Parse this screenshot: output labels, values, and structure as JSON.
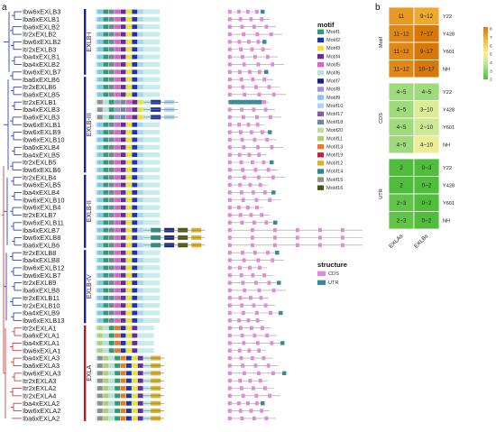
{
  "panel_a_label": "a",
  "panel_b_label": "b",
  "genes": [
    {
      "name": "Ibw6xEXLB3",
      "motifs": [
        "Motif9",
        "Motif1",
        "Motif18",
        "Motif5",
        "Motif4",
        "Motif3",
        "Motif2",
        "Motif10"
      ],
      "clade": 0
    },
    {
      "name": "Iba6xEXLB1",
      "motifs": [
        "Motif9",
        "Motif1",
        "Motif18",
        "Motif5",
        "Motif4",
        "Motif3",
        "Motif2",
        "Motif10"
      ],
      "clade": 0
    },
    {
      "name": "Iba6xEXLB2",
      "motifs": [
        "Motif9",
        "Motif1",
        "Motif18",
        "Motif5",
        "Motif4",
        "Motif3",
        "Motif2",
        "Motif10"
      ],
      "clade": 0
    },
    {
      "name": "Itr2xEXLB2",
      "motifs": [
        "Motif9",
        "Motif1",
        "Motif18",
        "Motif5",
        "Motif4",
        "Motif3",
        "Motif2",
        "Motif10"
      ],
      "clade": 0
    },
    {
      "name": "Ibw6xEXLB2",
      "motifs": [
        "Motif9",
        "Motif1",
        "Motif18",
        "Motif5",
        "Motif4",
        "Motif3",
        "Motif2",
        "Motif10"
      ],
      "clade": 0
    },
    {
      "name": "Itr2xEXLB3",
      "motifs": [
        "Motif9",
        "Motif1",
        "Motif18",
        "Motif5",
        "Motif4",
        "Motif3",
        "Motif2",
        "Motif10"
      ],
      "clade": 0
    },
    {
      "name": "Iba4xEXLB1",
      "motifs": [
        "Motif9",
        "Motif1",
        "Motif18",
        "Motif5",
        "Motif4",
        "Motif3",
        "Motif2",
        "Motif10"
      ],
      "clade": 0
    },
    {
      "name": "Iba4xEXLB2",
      "motifs": [
        "Motif9",
        "Motif1",
        "Motif18",
        "Motif5",
        "Motif4",
        "Motif3",
        "Motif2",
        "Motif10"
      ],
      "clade": 0
    },
    {
      "name": "Ibw6xEXLB7",
      "motifs": [
        "Motif9",
        "Motif1",
        "Motif18",
        "Motif5",
        "Motif4",
        "Motif3",
        "Motif2",
        "Motif10"
      ],
      "clade": 0
    },
    {
      "name": "Iba6xEXLB6",
      "motifs": [
        "Motif9",
        "Motif1",
        "Motif18",
        "Motif5",
        "Motif4",
        "Motif3",
        "Motif2",
        "Motif10"
      ],
      "clade": 1
    },
    {
      "name": "Itr2xEXLB6",
      "motifs": [
        "Motif9",
        "Motif1",
        "Motif18",
        "Motif5",
        "Motif4",
        "Motif3",
        "Motif2",
        "Motif10"
      ],
      "clade": 1
    },
    {
      "name": "Iba6xEXLB5",
      "motifs": [
        "Motif9",
        "Motif1",
        "Motif18",
        "Motif5",
        "Motif4",
        "Motif3",
        "Motif2",
        "Motif10"
      ],
      "clade": 1
    },
    {
      "name": "Itr2xEXLB1",
      "motifs": [
        "Motif15",
        "Motif6",
        "Motif1",
        "Motif8",
        "Motif18",
        "Motif5",
        "Motif4",
        "Motif3",
        "Motif2",
        "Motif10"
      ],
      "clade": 1
    },
    {
      "name": "Iba4xEXLB3",
      "motifs": [
        "Motif15",
        "Motif6",
        "Motif1",
        "Motif8",
        "Motif18",
        "Motif5",
        "Motif4",
        "Motif3",
        "Motif2",
        "Motif10"
      ],
      "clade": 1
    },
    {
      "name": "Iba6xEXLB3",
      "motifs": [
        "Motif15",
        "Motif6",
        "Motif1",
        "Motif8",
        "Motif18",
        "Motif5",
        "Motif4",
        "Motif3",
        "Motif2",
        "Motif10"
      ],
      "clade": 1
    },
    {
      "name": "Ibw6xEXLB1",
      "motifs": [
        "Motif9",
        "Motif1",
        "Motif18",
        "Motif5",
        "Motif4",
        "Motif3",
        "Motif2",
        "Motif10"
      ],
      "clade": 1
    },
    {
      "name": "Ibw6xEXLB9",
      "motifs": [
        "Motif9",
        "Motif1",
        "Motif18",
        "Motif5",
        "Motif4",
        "Motif3",
        "Motif2",
        "Motif10"
      ],
      "clade": 1
    },
    {
      "name": "Ibw6xEXLB10",
      "motifs": [
        "Motif9",
        "Motif1",
        "Motif18",
        "Motif5",
        "Motif4",
        "Motif3",
        "Motif2",
        "Motif10"
      ],
      "clade": 1
    },
    {
      "name": "Iba6xEXLB4",
      "motifs": [
        "Motif9",
        "Motif1",
        "Motif18",
        "Motif5",
        "Motif4",
        "Motif3",
        "Motif2",
        "Motif10"
      ],
      "clade": 1
    },
    {
      "name": "Iba4xEXLB5",
      "motifs": [
        "Motif9",
        "Motif1",
        "Motif18",
        "Motif5",
        "Motif4",
        "Motif3",
        "Motif2",
        "Motif10"
      ],
      "clade": 1
    },
    {
      "name": "Itr2xEXLB5",
      "motifs": [
        "Motif9",
        "Motif1",
        "Motif18",
        "Motif5",
        "Motif4",
        "Motif3",
        "Motif2",
        "Motif10"
      ],
      "clade": 1
    },
    {
      "name": "Ibw6xEXLB6",
      "motifs": [
        "Motif9",
        "Motif1",
        "Motif18",
        "Motif5",
        "Motif4",
        "Motif3",
        "Motif2",
        "Motif10"
      ],
      "clade": 1
    },
    {
      "name": "Itr2xEXLB4",
      "motifs": [
        "Motif9",
        "Motif1",
        "Motif18",
        "Motif5",
        "Motif4",
        "Motif3",
        "Motif2",
        "Motif10"
      ],
      "clade": 2
    },
    {
      "name": "Ibw6xEXLB5",
      "motifs": [
        "Motif9",
        "Motif1",
        "Motif18",
        "Motif5",
        "Motif4",
        "Motif3",
        "Motif2",
        "Motif10"
      ],
      "clade": 2
    },
    {
      "name": "Iba4xEXLB4",
      "motifs": [
        "Motif9",
        "Motif1",
        "Motif18",
        "Motif5",
        "Motif4",
        "Motif3",
        "Motif2",
        "Motif10"
      ],
      "clade": 2
    },
    {
      "name": "Ibw6xEXLB10",
      "motifs": [
        "Motif9",
        "Motif1",
        "Motif18",
        "Motif5",
        "Motif4",
        "Motif3",
        "Motif2",
        "Motif10"
      ],
      "clade": 2
    },
    {
      "name": "Ibw6xEXLB4",
      "motifs": [
        "Motif9",
        "Motif1",
        "Motif18",
        "Motif5",
        "Motif4",
        "Motif3",
        "Motif2",
        "Motif10"
      ],
      "clade": 2
    },
    {
      "name": "Itr2xEXLB7",
      "motifs": [
        "Motif9",
        "Motif1",
        "Motif18",
        "Motif5",
        "Motif4",
        "Motif3",
        "Motif2",
        "Motif10"
      ],
      "clade": 2
    },
    {
      "name": "Ibw6xEXLB11",
      "motifs": [
        "Motif9",
        "Motif1",
        "Motif18",
        "Motif5",
        "Motif4",
        "Motif3",
        "Motif2",
        "Motif10"
      ],
      "clade": 2
    },
    {
      "name": "Iba4xEXLB7",
      "motifs": [
        "Motif9",
        "Motif1",
        "Motif18",
        "Motif5",
        "Motif4",
        "Motif3",
        "Motif2",
        "Motif10",
        "Motif14",
        "Motif7",
        "Motif16",
        "Motif12"
      ],
      "clade": 2
    },
    {
      "name": "Ibw6xEXLB8",
      "motifs": [
        "Motif9",
        "Motif1",
        "Motif18",
        "Motif5",
        "Motif4",
        "Motif3",
        "Motif2",
        "Motif10",
        "Motif14",
        "Motif7",
        "Motif16",
        "Motif12"
      ],
      "clade": 2
    },
    {
      "name": "Iba6xEXLB6",
      "motifs": [
        "Motif9",
        "Motif1",
        "Motif18",
        "Motif5",
        "Motif4",
        "Motif3",
        "Motif2",
        "Motif10",
        "Motif14",
        "Motif7",
        "Motif16",
        "Motif12"
      ],
      "clade": 2
    },
    {
      "name": "Itr2xEXLB8",
      "motifs": [
        "Motif9",
        "Motif1",
        "Motif18",
        "Motif5",
        "Motif4",
        "Motif3",
        "Motif2",
        "Motif10"
      ],
      "clade": 3
    },
    {
      "name": "Iba4xEXLB8",
      "motifs": [
        "Motif9",
        "Motif1",
        "Motif18",
        "Motif5",
        "Motif4",
        "Motif3",
        "Motif2",
        "Motif10"
      ],
      "clade": 3
    },
    {
      "name": "Ibw6xEXLB12",
      "motifs": [
        "Motif9",
        "Motif1",
        "Motif18",
        "Motif5",
        "Motif4",
        "Motif3",
        "Motif2",
        "Motif10"
      ],
      "clade": 3
    },
    {
      "name": "Ibw6xEXLB7",
      "motifs": [
        "Motif9",
        "Motif1",
        "Motif18",
        "Motif5",
        "Motif4",
        "Motif3",
        "Motif2",
        "Motif10"
      ],
      "clade": 3
    },
    {
      "name": "Itr2xEXLB9",
      "motifs": [
        "Motif9",
        "Motif1",
        "Motif18",
        "Motif5",
        "Motif4",
        "Motif3",
        "Motif2",
        "Motif10"
      ],
      "clade": 3
    },
    {
      "name": "Iba6xEXLB8",
      "motifs": [
        "Motif9",
        "Motif1",
        "Motif18",
        "Motif5",
        "Motif4",
        "Motif3",
        "Motif2",
        "Motif10"
      ],
      "clade": 3
    },
    {
      "name": "Itr2xEXLB11",
      "motifs": [
        "Motif9",
        "Motif1",
        "Motif18",
        "Motif5",
        "Motif4",
        "Motif3",
        "Motif2",
        "Motif10"
      ],
      "clade": 3
    },
    {
      "name": "Itr2xEXLB10",
      "motifs": [
        "Motif9",
        "Motif1",
        "Motif18",
        "Motif5",
        "Motif4",
        "Motif3",
        "Motif2",
        "Motif10"
      ],
      "clade": 3
    },
    {
      "name": "Iba4xEXLB9",
      "motifs": [
        "Motif9",
        "Motif1",
        "Motif18",
        "Motif5",
        "Motif4",
        "Motif3",
        "Motif2",
        "Motif10"
      ],
      "clade": 3
    },
    {
      "name": "Ibw6xEXLB13",
      "motifs": [
        "Motif9",
        "Motif1",
        "Motif18",
        "Motif5",
        "Motif4",
        "Motif3",
        "Motif2",
        "Motif10"
      ],
      "clade": 3
    },
    {
      "name": "Itr2xEXLA1",
      "motifs": [
        "Motif11",
        "Motif6",
        "Motif1",
        "Motif13",
        "Motif2",
        "Motif3",
        "Motif4"
      ],
      "clade": 4
    },
    {
      "name": "Iba6xEXLA1",
      "motifs": [
        "Motif11",
        "Motif6",
        "Motif1",
        "Motif13",
        "Motif2",
        "Motif3",
        "Motif4"
      ],
      "clade": 4
    },
    {
      "name": "Iba4xEXLA1",
      "motifs": [
        "Motif11",
        "Motif6",
        "Motif1",
        "Motif13",
        "Motif2",
        "Motif3",
        "Motif4"
      ],
      "clade": 4
    },
    {
      "name": "Ibw6xEXLA1",
      "motifs": [
        "Motif11",
        "Motif6",
        "Motif1",
        "Motif13",
        "Motif2",
        "Motif3",
        "Motif4"
      ],
      "clade": 4
    },
    {
      "name": "Iba4xEXLA3",
      "motifs": [
        "Motif15",
        "Motif11",
        "Motif6",
        "Motif1",
        "Motif13",
        "Motif2",
        "Motif3",
        "Motif4",
        "Motif12"
      ],
      "clade": 4
    },
    {
      "name": "Iba6xEXLA3",
      "motifs": [
        "Motif15",
        "Motif11",
        "Motif6",
        "Motif1",
        "Motif13",
        "Motif2",
        "Motif3",
        "Motif4",
        "Motif12"
      ],
      "clade": 4
    },
    {
      "name": "Ibw6xEXLA3",
      "motifs": [
        "Motif15",
        "Motif11",
        "Motif6",
        "Motif1",
        "Motif13",
        "Motif2",
        "Motif3",
        "Motif4",
        "Motif12"
      ],
      "clade": 4
    },
    {
      "name": "Itr2xEXLA3",
      "motifs": [
        "Motif15",
        "Motif11",
        "Motif6",
        "Motif1",
        "Motif13",
        "Motif2",
        "Motif3",
        "Motif4",
        "Motif12"
      ],
      "clade": 4
    },
    {
      "name": "Itr2xEXLA2",
      "motifs": [
        "Motif15",
        "Motif11",
        "Motif6",
        "Motif1",
        "Motif13",
        "Motif2",
        "Motif3",
        "Motif4",
        "Motif12"
      ],
      "clade": 4
    },
    {
      "name": "Itr2xEXLA4",
      "motifs": [
        "Motif15",
        "Motif11",
        "Motif6",
        "Motif1",
        "Motif13",
        "Motif2",
        "Motif3",
        "Motif4",
        "Motif12"
      ],
      "clade": 4
    },
    {
      "name": "Iba4xEXLA2",
      "motifs": [
        "Motif15",
        "Motif11",
        "Motif6",
        "Motif1",
        "Motif13",
        "Motif2",
        "Motif3",
        "Motif4",
        "Motif12"
      ],
      "clade": 4
    },
    {
      "name": "Ibw6xEXLA2",
      "motifs": [
        "Motif15",
        "Motif11",
        "Motif6",
        "Motif1",
        "Motif13",
        "Motif2",
        "Motif3",
        "Motif4",
        "Motif12"
      ],
      "clade": 4
    },
    {
      "name": "Iba6xEXLA2",
      "motifs": [
        "Motif15",
        "Motif11",
        "Motif6",
        "Motif1",
        "Motif13",
        "Motif2",
        "Motif3",
        "Motif4",
        "Motif12"
      ],
      "clade": 4
    }
  ],
  "clades": [
    {
      "label": "EXLB-I",
      "color": "#1c1cb0"
    },
    {
      "label": "EXLB-III",
      "color": "#1c1cb0"
    },
    {
      "label": "EXLB-II",
      "color": "#1c1cb0"
    },
    {
      "label": "EXLB-IV",
      "color": "#1c1cb0"
    },
    {
      "label": "EXLA",
      "color": "#c01818"
    }
  ],
  "motif_legend": {
    "title": "motif",
    "items": [
      {
        "label": "Motif1",
        "color": "#2e9e6e"
      },
      {
        "label": "Motif2",
        "color": "#2233aa"
      },
      {
        "label": "Motif3",
        "color": "#f0e030"
      },
      {
        "label": "Motif4",
        "color": "#6a2a9a"
      },
      {
        "label": "Motif5",
        "color": "#e060c8"
      },
      {
        "label": "Motif6",
        "color": "#b5e3d8"
      },
      {
        "label": "Motif7",
        "color": "#1a237e"
      },
      {
        "label": "Motif8",
        "color": "#a890d0"
      },
      {
        "label": "Motif9",
        "color": "#80c8e8"
      },
      {
        "label": "Motif10",
        "color": "#a8d8f0"
      },
      {
        "label": "Motif17",
        "color": "#8060a0"
      },
      {
        "label": "Motif18",
        "color": "#708898"
      },
      {
        "label": "Motif20",
        "color": "#c0dca0"
      },
      {
        "label": "Motif11",
        "color": "#b0d070"
      },
      {
        "label": "Motif13",
        "color": "#f07820"
      },
      {
        "label": "Motif19",
        "color": "#c02040"
      },
      {
        "label": "Motif12",
        "color": "#e0b020"
      },
      {
        "label": "Motif14",
        "color": "#2a8a88"
      },
      {
        "label": "Motif15",
        "color": "#909090"
      },
      {
        "label": "Motif16",
        "color": "#4a5810"
      }
    ]
  },
  "structure_legend": {
    "title": "structure",
    "items": [
      {
        "label": "CDS",
        "color": "#e08ad8"
      },
      {
        "label": "UTR",
        "color": "#3a8a9a"
      }
    ]
  },
  "chart_data": {
    "type": "heatmap",
    "row_groups": [
      {
        "label": "Motif",
        "rows": [
          {
            "label": "Y22",
            "cells": [
              "11",
              "9~12"
            ],
            "values": [
              11,
              10.5
            ]
          },
          {
            "label": "Y428",
            "cells": [
              "11~12",
              "7~17"
            ],
            "values": [
              11.5,
              12
            ]
          },
          {
            "label": "Y601",
            "cells": [
              "11~12",
              "9~17"
            ],
            "values": [
              11.5,
              13
            ]
          },
          {
            "label": "NH",
            "cells": [
              "11~12",
              "10~17"
            ],
            "values": [
              11.5,
              13.5
            ]
          }
        ]
      },
      {
        "label": "CDS",
        "rows": [
          {
            "label": "Y22",
            "cells": [
              "4~5",
              "4~5"
            ],
            "values": [
              4.5,
              4.5
            ]
          },
          {
            "label": "Y428",
            "cells": [
              "4~5",
              "3~10"
            ],
            "values": [
              4.5,
              6.5
            ]
          },
          {
            "label": "Y601",
            "cells": [
              "4~5",
              "2~10"
            ],
            "values": [
              4.5,
              6
            ]
          },
          {
            "label": "NH",
            "cells": [
              "4~5",
              "4~10"
            ],
            "values": [
              4.5,
              7
            ]
          }
        ]
      },
      {
        "label": "UTR",
        "rows": [
          {
            "label": "Y22",
            "cells": [
              "2",
              "0~3"
            ],
            "values": [
              2,
              1.5
            ]
          },
          {
            "label": "Y428",
            "cells": [
              "2",
              "0~2"
            ],
            "values": [
              2,
              1
            ]
          },
          {
            "label": "Y601",
            "cells": [
              "2~3",
              "0~2"
            ],
            "values": [
              2.5,
              1
            ]
          },
          {
            "label": "NH",
            "cells": [
              "2~3",
              "0~2"
            ],
            "values": [
              2.5,
              1
            ]
          }
        ]
      }
    ],
    "columns": [
      "EXLAs",
      "EXLBs"
    ],
    "colorbar": {
      "min": 2,
      "max": 12,
      "ticks": [
        "8",
        "7",
        "6",
        "5",
        "4",
        "3",
        "2"
      ]
    }
  }
}
